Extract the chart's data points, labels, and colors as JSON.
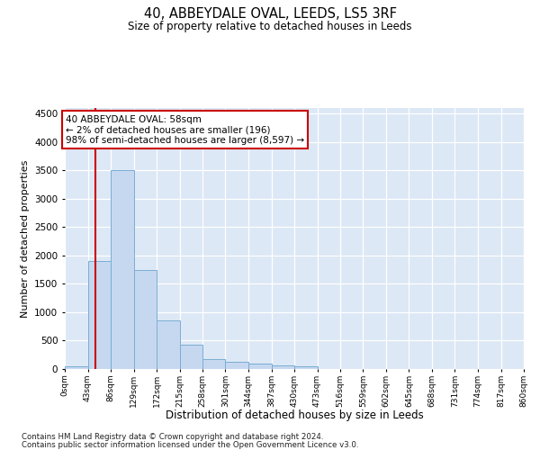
{
  "title": "40, ABBEYDALE OVAL, LEEDS, LS5 3RF",
  "subtitle": "Size of property relative to detached houses in Leeds",
  "xlabel": "Distribution of detached houses by size in Leeds",
  "ylabel": "Number of detached properties",
  "bar_color": "#c5d8f0",
  "bar_edge_color": "#7aadd4",
  "bg_color": "#dce8f5",
  "annotation_box_color": "#cc0000",
  "property_line_color": "#cc0000",
  "property_sqm": 58,
  "annotation_title": "40 ABBEYDALE OVAL: 58sqm",
  "annotation_line1": "← 2% of detached houses are smaller (196)",
  "annotation_line2": "98% of semi-detached houses are larger (8,597) →",
  "footnote1": "Contains HM Land Registry data © Crown copyright and database right 2024.",
  "footnote2": "Contains public sector information licensed under the Open Government Licence v3.0.",
  "bin_edges": [
    0,
    43,
    86,
    129,
    172,
    215,
    258,
    301,
    344,
    387,
    430,
    473,
    516,
    559,
    602,
    645,
    688,
    731,
    774,
    817,
    860
  ],
  "counts": [
    50,
    1900,
    3500,
    1750,
    850,
    430,
    175,
    130,
    100,
    60,
    40,
    0,
    0,
    0,
    0,
    0,
    0,
    0,
    0,
    0
  ],
  "ylim": [
    0,
    4600
  ],
  "yticks": [
    0,
    500,
    1000,
    1500,
    2000,
    2500,
    3000,
    3500,
    4000,
    4500
  ]
}
